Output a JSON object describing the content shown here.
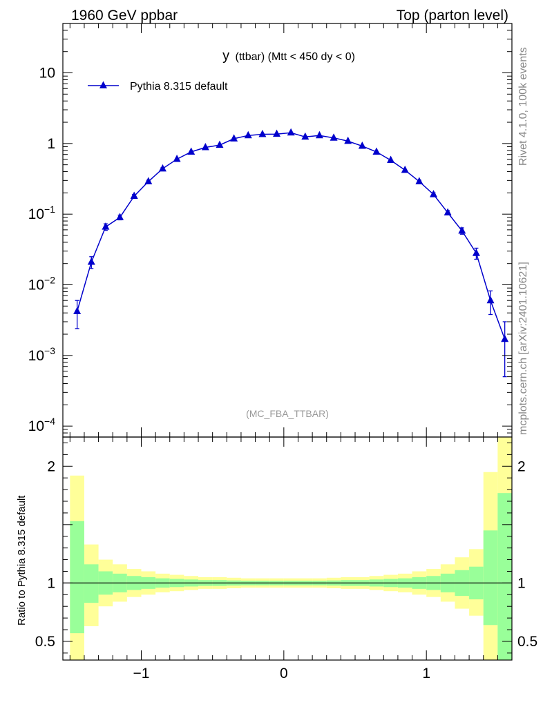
{
  "header": {
    "left": "1960 GeV ppbar",
    "right": "Top (parton level)"
  },
  "side_labels": {
    "rivet": "Rivet 4.1.0,  100k events",
    "mcplots": "mcplots.cern.ch [arXiv:2401.10621]"
  },
  "colors": {
    "series": "#0000cc",
    "band_inner": "#99ff99",
    "band_outer": "#ffff99",
    "watermark": "#999999"
  },
  "chart_data": [
    {
      "type": "line",
      "title_main": "y",
      "title_rest": "(ttbar) (Mtt < 450 dy < 0)",
      "watermark": "(MC_FBA_TTBAR)",
      "yscale": "log",
      "xlim": [
        -1.55,
        1.6
      ],
      "ylim": [
        7e-05,
        50
      ],
      "legend_position": "top-left",
      "y_ticks": [
        {
          "value": 10,
          "label": "10"
        },
        {
          "value": 1,
          "label": "1"
        },
        {
          "value": 0.1,
          "base": "10",
          "exp": "−1"
        },
        {
          "value": 0.01,
          "base": "10",
          "exp": "−2"
        },
        {
          "value": 0.001,
          "base": "10",
          "exp": "−3"
        },
        {
          "value": 0.0001,
          "base": "10",
          "exp": "−4"
        }
      ],
      "series": [
        {
          "name": "Pythia 8.315 default",
          "x": [
            -1.45,
            -1.35,
            -1.25,
            -1.15,
            -1.05,
            -0.95,
            -0.85,
            -0.75,
            -0.65,
            -0.55,
            -0.45,
            -0.35,
            -0.25,
            -0.15,
            -0.05,
            0.05,
            0.15,
            0.25,
            0.35,
            0.45,
            0.55,
            0.65,
            0.75,
            0.85,
            0.95,
            1.05,
            1.15,
            1.25,
            1.35,
            1.45,
            1.55
          ],
          "y": [
            0.0042,
            0.021,
            0.066,
            0.09,
            0.18,
            0.29,
            0.44,
            0.6,
            0.76,
            0.88,
            0.95,
            1.17,
            1.3,
            1.35,
            1.36,
            1.42,
            1.24,
            1.3,
            1.2,
            1.08,
            0.92,
            0.76,
            0.58,
            0.42,
            0.29,
            0.19,
            0.105,
            0.058,
            0.028,
            0.006,
            0.0017
          ],
          "yerr_low": [
            0.0018,
            0.004,
            0.007,
            0.007,
            0.01,
            0.012,
            0.015,
            0.017,
            0.019,
            0.02,
            0.021,
            0.023,
            0.025,
            0.025,
            0.025,
            0.026,
            0.024,
            0.025,
            0.024,
            0.022,
            0.021,
            0.019,
            0.017,
            0.014,
            0.012,
            0.01,
            0.007,
            0.006,
            0.005,
            0.0022,
            0.0012
          ],
          "yerr_high": [
            0.0018,
            0.004,
            0.007,
            0.007,
            0.01,
            0.012,
            0.015,
            0.017,
            0.019,
            0.02,
            0.021,
            0.023,
            0.025,
            0.025,
            0.025,
            0.026,
            0.024,
            0.025,
            0.024,
            0.022,
            0.021,
            0.019,
            0.017,
            0.014,
            0.012,
            0.01,
            0.007,
            0.006,
            0.005,
            0.0022,
            0.0013
          ]
        }
      ]
    },
    {
      "type": "area",
      "ylabel": "Ratio to Pythia 8.315 default",
      "xlim": [
        -1.55,
        1.6
      ],
      "ylim": [
        0.34,
        2.25
      ],
      "reference": 1,
      "x_ticks": [
        {
          "value": -1,
          "label": "−1"
        },
        {
          "value": 0,
          "label": "0"
        },
        {
          "value": 1,
          "label": "1"
        }
      ],
      "y_ticks": [
        {
          "value": 2,
          "label": "2"
        },
        {
          "value": 1,
          "label": "1"
        },
        {
          "value": 0.5,
          "label": "0.5"
        }
      ],
      "bin_edges": [
        -1.5,
        -1.4,
        -1.3,
        -1.2,
        -1.1,
        -1.0,
        -0.9,
        -0.8,
        -0.7,
        -0.6,
        -0.5,
        -0.4,
        -0.3,
        -0.2,
        -0.1,
        0.0,
        0.1,
        0.2,
        0.3,
        0.4,
        0.5,
        0.6,
        0.7,
        0.8,
        0.9,
        1.0,
        1.1,
        1.2,
        1.3,
        1.4,
        1.5,
        1.6
      ],
      "band_inner_low": [
        0.57,
        0.83,
        0.9,
        0.92,
        0.94,
        0.95,
        0.96,
        0.965,
        0.97,
        0.975,
        0.975,
        0.978,
        0.98,
        0.98,
        0.98,
        0.98,
        0.98,
        0.98,
        0.978,
        0.975,
        0.975,
        0.97,
        0.965,
        0.96,
        0.95,
        0.94,
        0.92,
        0.89,
        0.86,
        0.64,
        0.34
      ],
      "band_inner_high": [
        1.53,
        1.16,
        1.1,
        1.08,
        1.06,
        1.05,
        1.04,
        1.035,
        1.03,
        1.025,
        1.025,
        1.022,
        1.02,
        1.02,
        1.02,
        1.02,
        1.02,
        1.02,
        1.022,
        1.025,
        1.025,
        1.03,
        1.035,
        1.04,
        1.05,
        1.06,
        1.08,
        1.11,
        1.14,
        1.45,
        1.77
      ],
      "band_outer_low": [
        0.34,
        0.63,
        0.8,
        0.84,
        0.88,
        0.9,
        0.92,
        0.93,
        0.94,
        0.95,
        0.95,
        0.955,
        0.96,
        0.96,
        0.96,
        0.96,
        0.96,
        0.96,
        0.955,
        0.95,
        0.95,
        0.94,
        0.93,
        0.92,
        0.9,
        0.88,
        0.84,
        0.78,
        0.72,
        0.34,
        0.34
      ],
      "band_outer_high": [
        1.92,
        1.33,
        1.2,
        1.16,
        1.12,
        1.1,
        1.08,
        1.07,
        1.06,
        1.05,
        1.05,
        1.045,
        1.04,
        1.04,
        1.04,
        1.04,
        1.04,
        1.04,
        1.045,
        1.05,
        1.05,
        1.06,
        1.07,
        1.08,
        1.1,
        1.12,
        1.16,
        1.22,
        1.29,
        1.95,
        2.25
      ]
    }
  ]
}
